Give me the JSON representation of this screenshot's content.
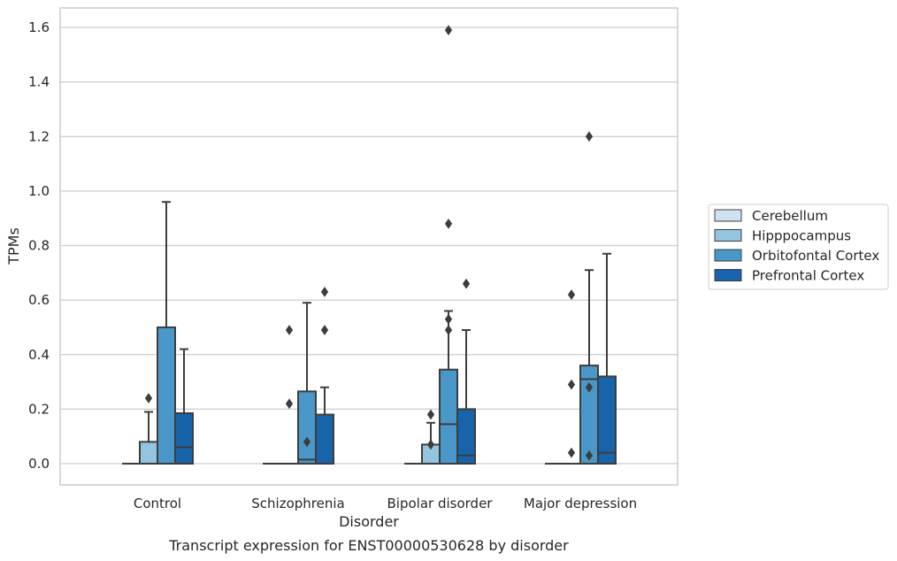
{
  "chart_data": {
    "type": "box",
    "title": "",
    "caption": "Transcript expression for ENST00000530628 by disorder",
    "xlabel": "Disorder",
    "ylabel": "TPMs",
    "ylim": [
      -0.08,
      1.67
    ],
    "yticks": [
      "0.0",
      "0.2",
      "0.4",
      "0.6",
      "0.8",
      "1.0",
      "1.2",
      "1.4",
      "1.6"
    ],
    "grid": "horizontal",
    "legend_position": "right",
    "categories": [
      "Control",
      "Schizophrenia",
      "Bipolar disorder",
      "Major depression"
    ],
    "series": [
      {
        "name": "Cerebellum",
        "color": "#d0e1f2",
        "boxes": [
          {
            "q1": 0,
            "median": 0,
            "q3": 0,
            "whisker_low": 0,
            "whisker_high": 0,
            "outliers": []
          },
          {
            "q1": 0,
            "median": 0,
            "q3": 0,
            "whisker_low": 0,
            "whisker_high": 0,
            "outliers": []
          },
          {
            "q1": 0,
            "median": 0,
            "q3": 0,
            "whisker_low": 0,
            "whisker_high": 0,
            "outliers": []
          },
          {
            "q1": 0,
            "median": 0,
            "q3": 0,
            "whisker_low": 0,
            "whisker_high": 0,
            "outliers": []
          }
        ]
      },
      {
        "name": "Hipppocampus",
        "color": "#94c4df",
        "boxes": [
          {
            "q1": 0,
            "median": 0,
            "q3": 0.08,
            "whisker_low": 0,
            "whisker_high": 0.19,
            "outliers": [
              0.24
            ]
          },
          {
            "q1": 0,
            "median": 0,
            "q3": 0,
            "whisker_low": 0,
            "whisker_high": 0,
            "outliers": [
              0.22,
              0.49
            ]
          },
          {
            "q1": 0,
            "median": 0,
            "q3": 0.07,
            "whisker_low": 0,
            "whisker_high": 0.15,
            "outliers": [
              0.07,
              0.18
            ]
          },
          {
            "q1": 0,
            "median": 0,
            "q3": 0,
            "whisker_low": 0,
            "whisker_high": 0,
            "outliers": [
              0.04,
              0.29,
              0.62
            ]
          }
        ]
      },
      {
        "name": "Orbitofontal Cortex",
        "color": "#4a98c9",
        "boxes": [
          {
            "q1": 0,
            "median": 0,
            "q3": 0.5,
            "whisker_low": 0,
            "whisker_high": 0.96,
            "outliers": []
          },
          {
            "q1": 0,
            "median": 0.015,
            "q3": 0.265,
            "whisker_low": 0,
            "whisker_high": 0.59,
            "outliers": [
              0.08
            ]
          },
          {
            "q1": 0,
            "median": 0.145,
            "q3": 0.345,
            "whisker_low": 0,
            "whisker_high": 0.56,
            "outliers": [
              0.49,
              0.53,
              0.88,
              1.59
            ]
          },
          {
            "q1": 0,
            "median": 0.31,
            "q3": 0.36,
            "whisker_low": 0,
            "whisker_high": 0.71,
            "outliers": [
              0.03,
              0.28,
              1.2
            ]
          }
        ]
      },
      {
        "name": "Prefrontal Cortex",
        "color": "#1764ab",
        "boxes": [
          {
            "q1": 0,
            "median": 0.06,
            "q3": 0.185,
            "whisker_low": 0,
            "whisker_high": 0.42,
            "outliers": []
          },
          {
            "q1": 0,
            "median": 0,
            "q3": 0.18,
            "whisker_low": 0,
            "whisker_high": 0.28,
            "outliers": [
              0.49,
              0.63
            ]
          },
          {
            "q1": 0,
            "median": 0.03,
            "q3": 0.2,
            "whisker_low": 0,
            "whisker_high": 0.49,
            "outliers": [
              0.66
            ]
          },
          {
            "q1": 0,
            "median": 0.04,
            "q3": 0.32,
            "whisker_low": 0,
            "whisker_high": 0.77,
            "outliers": []
          }
        ]
      }
    ]
  }
}
